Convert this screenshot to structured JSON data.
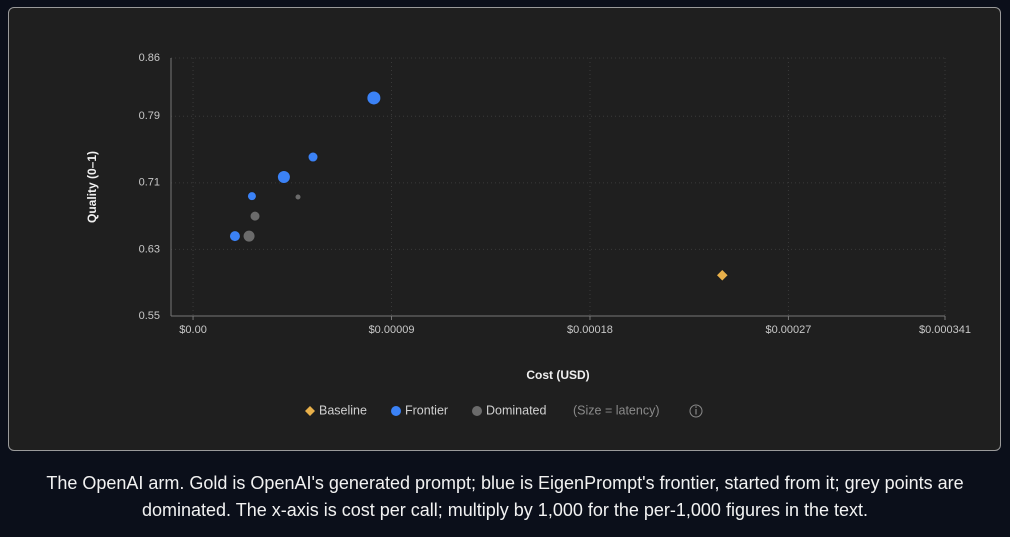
{
  "chart_data": {
    "type": "scatter",
    "x_label": "Cost (USD)",
    "y_label": "Quality (0–1)",
    "size_note": "(Size = latency)",
    "xlim": [
      -1e-05,
      0.000341
    ],
    "ylim": [
      0.55,
      0.86
    ],
    "xticks": [
      {
        "value": 0,
        "label": "$0.00"
      },
      {
        "value": 9e-05,
        "label": "$0.00009"
      },
      {
        "value": 0.00018,
        "label": "$0.00018"
      },
      {
        "value": 0.00027,
        "label": "$0.00027"
      },
      {
        "value": 0.000341,
        "label": "$0.000341"
      }
    ],
    "yticks": [
      0.55,
      0.63,
      0.71,
      0.79,
      0.86
    ],
    "grid": true,
    "series": [
      {
        "name": "Baseline",
        "color": "#e8b04a",
        "marker": "diamond",
        "x": [
          0.00024
        ],
        "values": [
          0.599
        ],
        "sizes": [
          6
        ]
      },
      {
        "name": "Frontier",
        "color": "#3b82f6",
        "marker": "circle",
        "x": [
          8.2e-05,
          5.44e-05,
          4.12e-05,
          2.67e-05,
          1.9e-05
        ],
        "values": [
          0.812,
          0.741,
          0.717,
          0.694,
          0.646
        ],
        "sizes": [
          7,
          5,
          6.5,
          4.5,
          5.5
        ]
      },
      {
        "name": "Dominated",
        "color": "#6b6b6b",
        "marker": "circle",
        "x": [
          2.81e-05,
          2.54e-05,
          4.76e-05
        ],
        "values": [
          0.67,
          0.646,
          0.693
        ],
        "sizes": [
          5,
          6,
          3
        ]
      }
    ]
  },
  "caption": "The OpenAI arm. Gold is OpenAI's generated prompt; blue is EigenPrompt's frontier, started from it; grey points are dominated. The x-axis is cost per call; multiply by 1,000 for the per-1,000 figures in the text."
}
